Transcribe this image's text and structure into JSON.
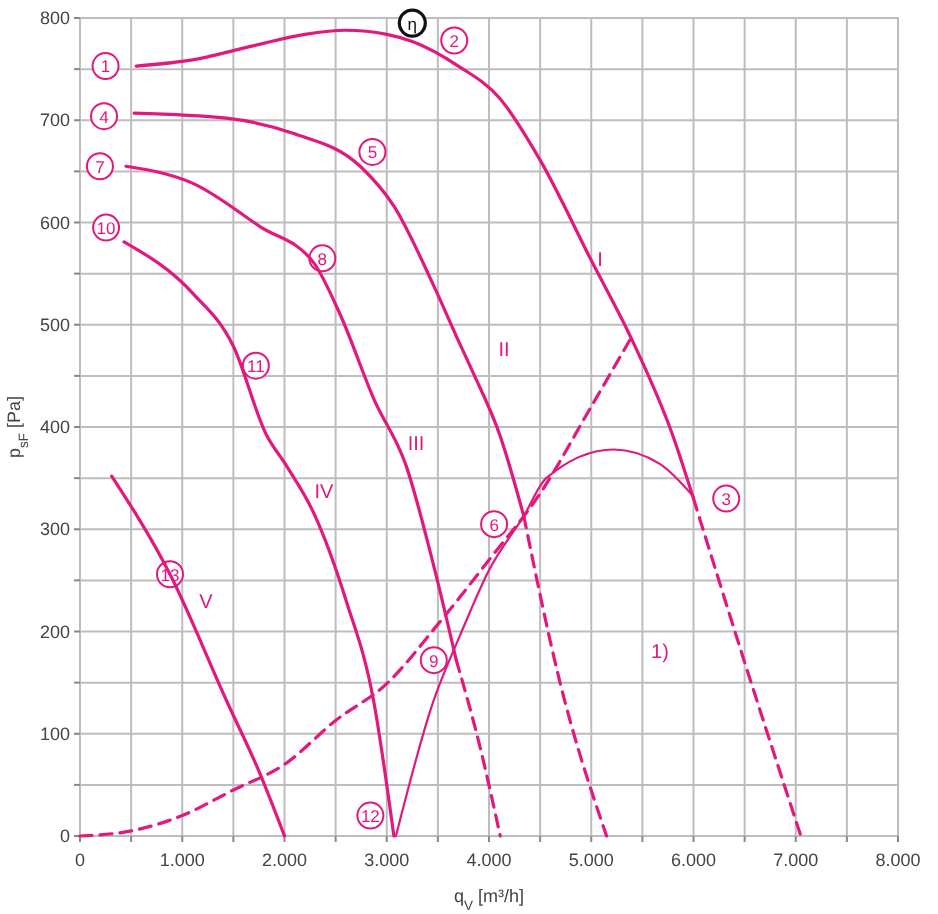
{
  "chart_data": {
    "type": "line",
    "xlabel": "q$_{V}$ [m³/h]",
    "ylabel": "p$_{sF}$ [Pa]",
    "xlim": [
      0,
      8000
    ],
    "ylim": [
      0,
      800
    ],
    "xticks": [
      {
        "value": 0,
        "label": "0"
      },
      {
        "value": 500,
        "label": null
      },
      {
        "value": 1000,
        "label": "1.000"
      },
      {
        "value": 1500,
        "label": null
      },
      {
        "value": 2000,
        "label": "2.000"
      },
      {
        "value": 2500,
        "label": null
      },
      {
        "value": 3000,
        "label": "3.000"
      },
      {
        "value": 3500,
        "label": null
      },
      {
        "value": 4000,
        "label": "4.000"
      },
      {
        "value": 4500,
        "label": null
      },
      {
        "value": 5000,
        "label": "5.000"
      },
      {
        "value": 5500,
        "label": null
      },
      {
        "value": 6000,
        "label": "6.000"
      },
      {
        "value": 6500,
        "label": null
      },
      {
        "value": 7000,
        "label": "7.000"
      },
      {
        "value": 7500,
        "label": null
      },
      {
        "value": 8000,
        "label": "8.000"
      }
    ],
    "yticks": [
      0,
      {
        "value": 50,
        "label": null
      },
      100,
      {
        "value": 150,
        "label": null
      },
      200,
      {
        "value": 250,
        "label": null
      },
      300,
      {
        "value": 350,
        "label": null
      },
      400,
      {
        "value": 450,
        "label": null
      },
      500,
      {
        "value": 550,
        "label": null
      },
      600,
      {
        "value": 650,
        "label": null
      },
      700,
      {
        "value": 750,
        "label": null
      },
      800
    ],
    "grid": true,
    "marker": "none",
    "series": [
      {
        "name": "I",
        "color": "#e2187c",
        "line_style": "solid",
        "x": [
          550,
          1100,
          1700,
          2200,
          2600,
          3000,
          3250,
          3700,
          4100,
          4500,
          5000,
          5400,
          5800,
          6000
        ],
        "values": [
          753,
          759,
          773,
          784,
          788,
          784,
          777,
          753,
          722,
          661,
          563,
          485,
          391,
          330
        ]
      },
      {
        "color": "#e2187c",
        "line_style": "dashed",
        "x": [
          6000,
          6500,
          7050
        ],
        "values": [
          330,
          170,
          0
        ]
      },
      {
        "name": "II",
        "color": "#e2187c",
        "line_style": "solid",
        "x": [
          530,
          1430,
          2090,
          2740,
          3070,
          3460,
          3716,
          3850,
          4110,
          4340
        ],
        "values": [
          707,
          702,
          687,
          655,
          616,
          538,
          481,
          452,
          391,
          313
        ]
      },
      {
        "color": "#e2187c",
        "line_style": "dashed",
        "x": [
          4340,
          4690,
          5150
        ],
        "values": [
          313,
          152,
          0
        ]
      },
      {
        "name": "III",
        "color": "#e2187c",
        "line_style": "solid",
        "x": [
          450,
          1110,
          1760,
          2290,
          2540,
          2880,
          3190,
          3460,
          3680
        ],
        "values": [
          655,
          638,
          596,
          560,
          511,
          426,
          362,
          264,
          172
        ]
      },
      {
        "color": "#e2187c",
        "line_style": "dashed",
        "x": [
          3680,
          3910,
          4110
        ],
        "values": [
          172,
          88,
          0
        ]
      },
      {
        "name": "IV",
        "color": "#e2187c",
        "line_style": "solid",
        "x": [
          430,
          1110,
          1500,
          1820,
          2020,
          2290,
          2600,
          2870,
          3070
        ],
        "values": [
          581,
          530,
          479,
          393,
          362,
          315,
          231,
          133,
          0
        ]
      },
      {
        "name": "V",
        "color": "#e2187c",
        "line_style": "solid",
        "x": [
          310,
          880,
          1430,
          1760,
          2000
        ],
        "values": [
          352,
          256,
          133,
          61,
          0
        ]
      },
      {
        "color": "#e2187c",
        "line_style": "dashed",
        "x": [
          0,
          500,
          1000,
          1500,
          2000,
          2500,
          3000,
          3500,
          4000,
          4500,
          5000,
          5400
        ],
        "values": [
          0,
          5,
          20,
          45,
          70,
          113,
          149,
          207,
          270,
          335,
          420,
          489
        ]
      },
      {
        "color": "#e2187c",
        "line_style": "solid",
        "x": [
          3090,
          3450,
          3716,
          4000,
          4340,
          4560,
          5220,
          5670,
          6000
        ],
        "values": [
          0,
          130,
          196,
          260,
          313,
          350,
          378,
          364,
          332
        ]
      }
    ],
    "annotations": [
      {
        "text": "1",
        "x": 250,
        "y": 753
      },
      {
        "text": "2",
        "x": 3660,
        "y": 778
      },
      {
        "text": "3",
        "x": 6320,
        "y": 330
      },
      {
        "text": "4",
        "x": 235,
        "y": 704
      },
      {
        "text": "5",
        "x": 2860,
        "y": 669
      },
      {
        "text": "6",
        "x": 4050,
        "y": 305
      },
      {
        "text": "7",
        "x": 195,
        "y": 655
      },
      {
        "text": "8",
        "x": 2370,
        "y": 565
      },
      {
        "text": "9",
        "x": 3460,
        "y": 172
      },
      {
        "text": "10",
        "x": 255,
        "y": 595
      },
      {
        "text": "11",
        "x": 1720,
        "y": 460
      },
      {
        "text": "12",
        "x": 2840,
        "y": 20
      },
      {
        "text": "13",
        "x": 880,
        "y": 256
      },
      {
        "text": "η",
        "x": 3250,
        "y": 795
      },
      "1)"
    ]
  }
}
